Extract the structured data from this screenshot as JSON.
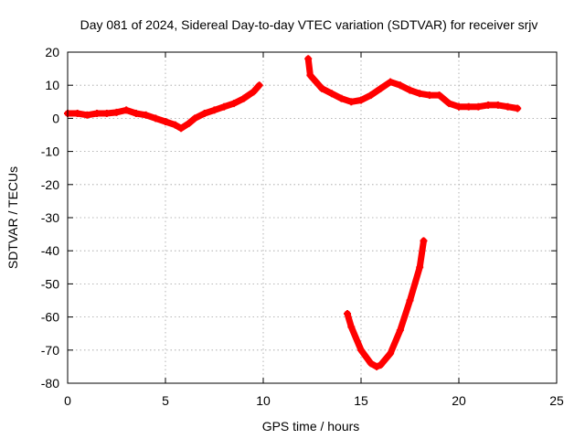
{
  "chart_data": {
    "type": "scatter",
    "title": "Day 081 of 2024, Sidereal Day-to-day VTEC variation (SDTVAR) for receiver srjv",
    "xlabel": "GPS time / hours",
    "ylabel": "SDTVAR / TECUs",
    "xlim": [
      0,
      25
    ],
    "ylim": [
      -80,
      20
    ],
    "xticks": [
      0,
      5,
      10,
      15,
      20,
      25
    ],
    "yticks": [
      20,
      10,
      0,
      -10,
      -20,
      -30,
      -40,
      -50,
      -60,
      -70,
      -80
    ],
    "grid": true,
    "color": "#ff0000",
    "series": [
      {
        "name": "SDTVAR segment 1",
        "x": [
          0.0,
          0.5,
          1.0,
          1.5,
          2.0,
          2.5,
          3.0,
          3.5,
          4.0,
          4.5,
          5.0,
          5.5,
          5.8,
          6.2,
          6.5,
          7.0,
          7.5,
          8.0,
          8.5,
          9.0,
          9.5,
          9.8
        ],
        "y": [
          1.5,
          1.5,
          1.0,
          1.5,
          1.5,
          1.8,
          2.5,
          1.5,
          1.0,
          0.0,
          -1.0,
          -2.0,
          -3.0,
          -1.5,
          0.0,
          1.5,
          2.5,
          3.5,
          4.5,
          6.0,
          8.0,
          10.0
        ]
      },
      {
        "name": "SDTVAR segment 2",
        "x": [
          12.3,
          12.4,
          12.7,
          13.0,
          13.5,
          14.0,
          14.5,
          15.0,
          15.5,
          16.0,
          16.5,
          17.0,
          17.5,
          18.0,
          18.5,
          19.0,
          19.5,
          20.0,
          20.5,
          21.0,
          21.5,
          22.0,
          22.5,
          23.0
        ],
        "y": [
          18.0,
          13.0,
          11.0,
          9.0,
          7.5,
          6.0,
          5.0,
          5.5,
          7.0,
          9.0,
          11.0,
          10.0,
          8.5,
          7.5,
          7.0,
          7.0,
          4.5,
          3.5,
          3.5,
          3.5,
          4.0,
          4.0,
          3.5,
          3.0
        ]
      },
      {
        "name": "SDTVAR segment 3",
        "x": [
          14.3,
          14.5,
          15.0,
          15.5,
          15.8,
          16.0,
          16.5,
          17.0,
          17.5,
          18.0,
          18.2
        ],
        "y": [
          -59.0,
          -63.0,
          -70.0,
          -74.0,
          -75.0,
          -74.5,
          -71.0,
          -64.0,
          -55.0,
          -45.0,
          -37.0
        ]
      }
    ]
  }
}
